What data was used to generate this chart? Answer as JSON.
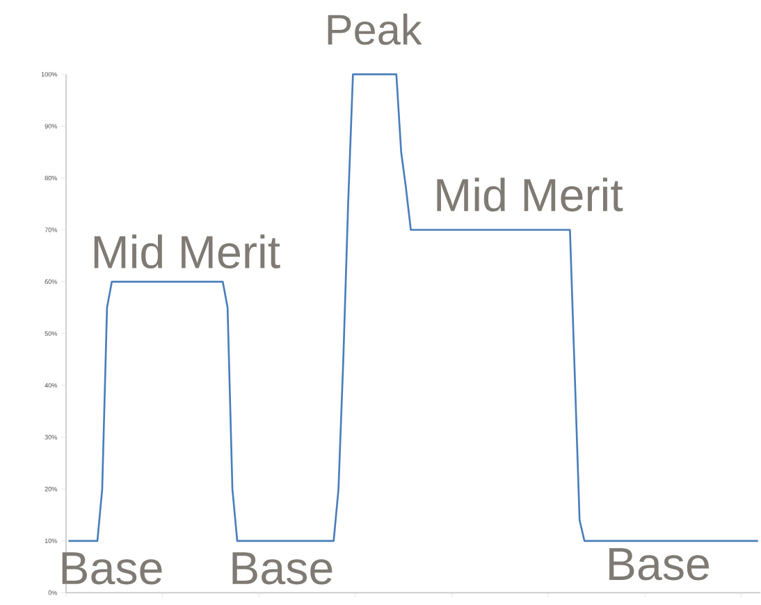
{
  "chart_data": {
    "type": "line",
    "categories": [
      null,
      null,
      null,
      null,
      null,
      null,
      null,
      null,
      null,
      null,
      null,
      null,
      null,
      null,
      null,
      null,
      null,
      null,
      null,
      null,
      null,
      null,
      null,
      null,
      null,
      null,
      null,
      null,
      null,
      null,
      null,
      null,
      null,
      null,
      null,
      null,
      null,
      null,
      null,
      null,
      null,
      null,
      null,
      null,
      null,
      null,
      null,
      null,
      null,
      null,
      null,
      null,
      null,
      null,
      null,
      null,
      null,
      null,
      null,
      null,
      null,
      null,
      null,
      null,
      null,
      null,
      null,
      null,
      null,
      null,
      null,
      null,
      null,
      null,
      null,
      null,
      null,
      null,
      null,
      null,
      null,
      null,
      null,
      null,
      null,
      null,
      null,
      null,
      null,
      null,
      null,
      null,
      null,
      null,
      null,
      null,
      null,
      null,
      null,
      null,
      null,
      null,
      null,
      null,
      null,
      null,
      null,
      null,
      null,
      null,
      null,
      null,
      null,
      null,
      null,
      null,
      null,
      null,
      null,
      null,
      null,
      null,
      null,
      null,
      null,
      null,
      null,
      null,
      null,
      null,
      null,
      null,
      null,
      null,
      null,
      null,
      null,
      null,
      null,
      null,
      null,
      null,
      null,
      null
    ],
    "values": [
      10,
      10,
      10,
      10,
      10,
      10,
      10,
      20,
      55,
      60,
      60,
      60,
      60,
      60,
      60,
      60,
      60,
      60,
      60,
      60,
      60,
      60,
      60,
      60,
      60,
      60,
      60,
      60,
      60,
      60,
      60,
      60,
      60,
      55,
      20,
      10,
      10,
      10,
      10,
      10,
      10,
      10,
      10,
      10,
      10,
      10,
      10,
      10,
      10,
      10,
      10,
      10,
      10,
      10,
      10,
      10,
      20,
      45,
      75,
      100,
      100,
      100,
      100,
      100,
      100,
      100,
      100,
      100,
      100,
      85,
      78,
      70,
      70,
      70,
      70,
      70,
      70,
      70,
      70,
      70,
      70,
      70,
      70,
      70,
      70,
      70,
      70,
      70,
      70,
      70,
      70,
      70,
      70,
      70,
      70,
      70,
      70,
      70,
      70,
      70,
      70,
      70,
      70,
      70,
      70,
      42,
      14,
      10,
      10,
      10,
      10,
      10,
      10,
      10,
      10,
      10,
      10,
      10,
      10,
      10,
      10,
      10,
      10,
      10,
      10,
      10,
      10,
      10,
      10,
      10,
      10,
      10,
      10,
      10,
      10,
      10,
      10,
      10,
      10,
      10,
      10,
      10,
      10,
      10
    ],
    "color": "#4a7ebb",
    "ylim": [
      0,
      100
    ],
    "yticks": [
      {
        "value": 0,
        "label": "0%"
      },
      {
        "value": 10,
        "label": "10%"
      },
      {
        "value": 20,
        "label": "20%"
      },
      {
        "value": 30,
        "label": "30%"
      },
      {
        "value": 40,
        "label": "40%"
      },
      {
        "value": 50,
        "label": "50%"
      },
      {
        "value": 60,
        "label": "60%"
      },
      {
        "value": 70,
        "label": "70%"
      },
      {
        "value": 80,
        "label": "80%"
      },
      {
        "value": 90,
        "label": "90%"
      },
      {
        "value": 100,
        "label": "100%"
      }
    ],
    "tick_labels": "y",
    "marker": "none",
    "line_style": "solid",
    "annotations": [
      "Peak",
      "Mid Merit",
      "Mid Merit",
      "Base",
      "Base",
      "Base"
    ]
  }
}
